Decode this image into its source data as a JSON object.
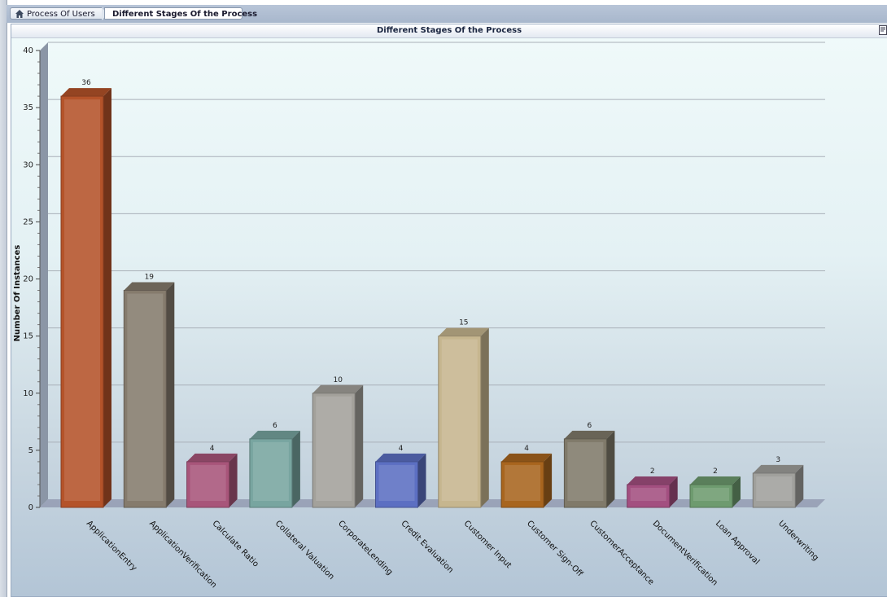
{
  "breadcrumb": {
    "home_label": "Process Of Users",
    "current_label": "Different Stages Of the Process"
  },
  "panel": {
    "title": "Different Stages Of the Process"
  },
  "chart_data": {
    "type": "bar",
    "title": "Different Stages Of the Process",
    "xlabel": "",
    "ylabel": "Number Of Instances",
    "ylim": [
      0,
      40
    ],
    "yticks": [
      0,
      5,
      10,
      15,
      20,
      25,
      30,
      35,
      40
    ],
    "grid": true,
    "style": "3d-column",
    "categories": [
      "ApplicationEntry",
      "ApplicationVerification",
      "Calculate Ratio",
      "Collateral Valuation",
      "CorporateLending",
      "Credit Evaluation",
      "Customer Input",
      "Customer Sign-Off",
      "CustomerAcceptance",
      "DocumentVerification",
      "Loan Approval",
      "Underwriting"
    ],
    "values": [
      36,
      19,
      4,
      6,
      10,
      4,
      15,
      4,
      6,
      2,
      2,
      3
    ],
    "colors": [
      "#b4532a",
      "#857b6d",
      "#a8557a",
      "#78a5a0",
      "#a3a19b",
      "#5c6fc2",
      "#c6b68f",
      "#a8651e",
      "#807a6a",
      "#a34f80",
      "#6e9b6f",
      "#a0a09c"
    ]
  }
}
